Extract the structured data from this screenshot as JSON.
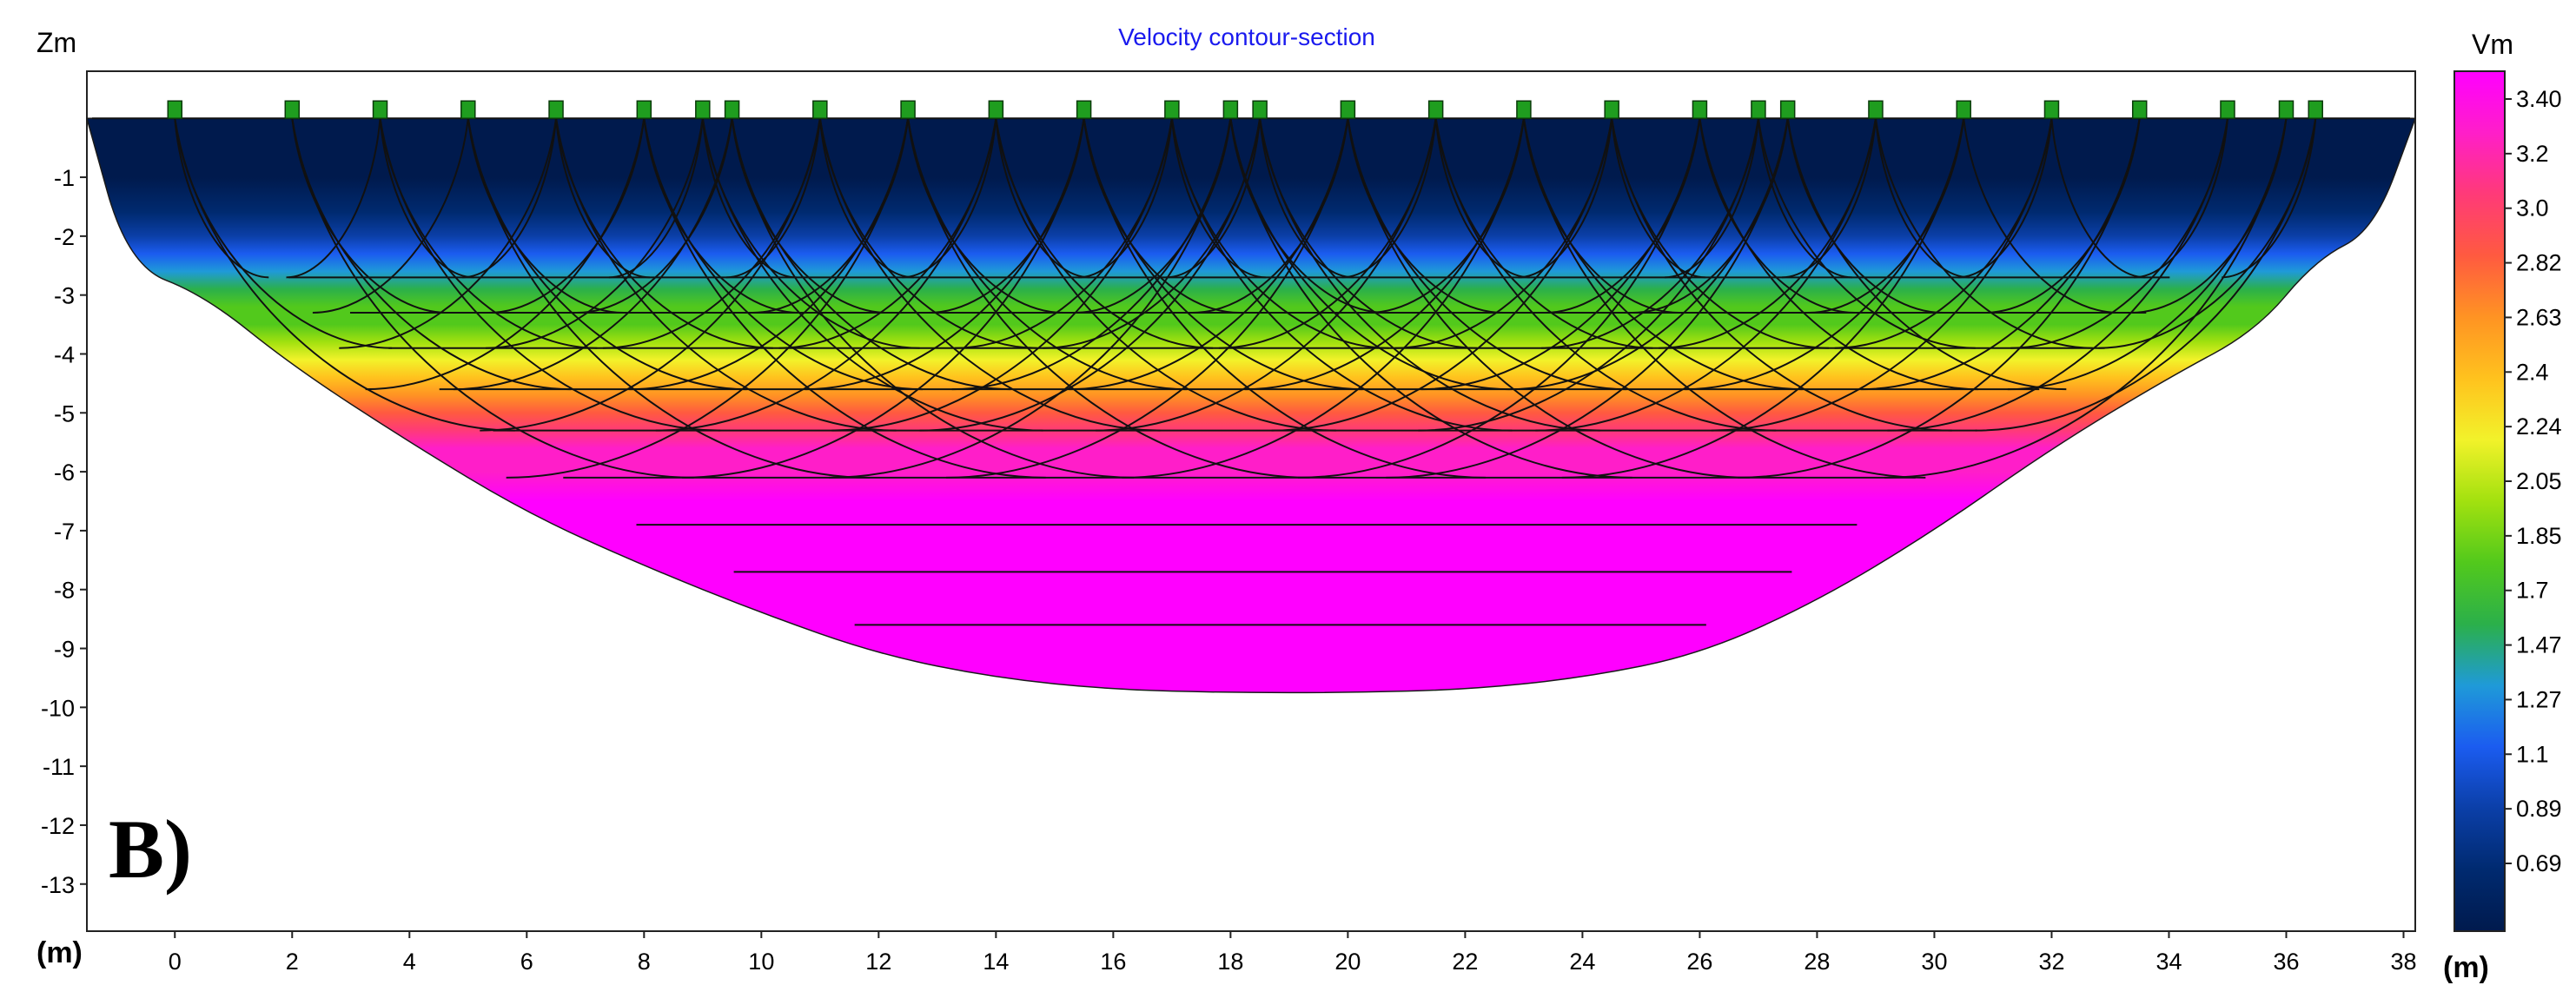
{
  "chart_data": {
    "type": "heatmap",
    "title": "Velocity contour-section",
    "panel_label": "B)",
    "ylabel": "Zm",
    "xunit": "(m)",
    "xunit_right": "(m)",
    "colorbar_label": "Vm",
    "xlim": [
      -1.5,
      38.2
    ],
    "ylim": [
      -13.8,
      0.8
    ],
    "x_ticks": [
      "0",
      "2",
      "4",
      "6",
      "8",
      "10",
      "12",
      "14",
      "16",
      "18",
      "20",
      "22",
      "24",
      "26",
      "28",
      "30",
      "32",
      "34",
      "36",
      "38"
    ],
    "y_ticks": [
      "-1",
      "-2",
      "-3",
      "-4",
      "-5",
      "-6",
      "-7",
      "-8",
      "-9",
      "-10",
      "-11",
      "-12",
      "-13"
    ],
    "colorbar_ticks": [
      "3.40",
      "3.2",
      "3.0",
      "2.82",
      "2.63",
      "2.4",
      "2.24",
      "2.05",
      "1.85",
      "1.7",
      "1.47",
      "1.27",
      "1.1",
      "0.89",
      "0.69"
    ],
    "colorbar_range": [
      0.5,
      3.5
    ],
    "colors": [
      "#001a4d",
      "#002a70",
      "#0b3fa8",
      "#1b5cf0",
      "#1f9ad8",
      "#2bb04a",
      "#52c91c",
      "#a2e10f",
      "#f2f22a",
      "#ffc21e",
      "#ff9323",
      "#ff5a40",
      "#ff3a78",
      "#ff1ec9",
      "#ff00ff"
    ],
    "surface_level": 0,
    "model_boundary": {
      "x": [
        -1.5,
        -0.8,
        0.5,
        2,
        4,
        6,
        8,
        10,
        12,
        14,
        16,
        18,
        20,
        22,
        24,
        26,
        28,
        30,
        32,
        34,
        35.5,
        36.5,
        37.5,
        38.2
      ],
      "z": [
        0,
        -2.5,
        -3.0,
        -4.2,
        -5.5,
        -6.7,
        -7.6,
        -8.4,
        -9.1,
        -9.5,
        -9.7,
        -9.75,
        -9.75,
        -9.7,
        -9.5,
        -9.1,
        -8.2,
        -7.0,
        -5.6,
        -4.4,
        -3.6,
        -2.4,
        -1.9,
        0
      ],
      "tri": [
        0.6,
        0.8,
        0.8,
        0.8,
        0.8,
        0.8,
        0.8,
        0.8,
        0.8,
        0.8,
        0.8,
        0.8,
        0.8,
        0.8,
        0.8,
        0.8,
        0.8,
        0.8,
        0.8,
        0.8,
        0.8,
        0.8,
        0.8,
        0.6
      ]
    },
    "velocity_profile": {
      "depth": [
        0,
        -1.0,
        -1.6,
        -2.0,
        -2.3,
        -2.6,
        -2.9,
        -3.2,
        -3.5,
        -3.8,
        -4.1,
        -4.4,
        -4.7,
        -5.0,
        -5.3,
        -5.6,
        -6.0,
        -6.5,
        -7.0,
        -10.0
      ],
      "velocity": [
        0.55,
        0.6,
        0.69,
        0.89,
        1.1,
        1.27,
        1.47,
        1.7,
        1.85,
        2.05,
        2.24,
        2.4,
        2.63,
        2.82,
        3.0,
        3.2,
        3.3,
        3.4,
        3.45,
        3.5
      ]
    },
    "geophones_x": [
      0,
      2,
      3.5,
      5,
      6.5,
      8,
      9,
      9.5,
      11,
      12.5,
      14,
      15.5,
      17,
      18,
      18.5,
      20,
      21.5,
      23,
      24.5,
      26,
      27,
      27.5,
      29,
      30.5,
      32,
      33.5,
      35,
      36,
      36.5
    ],
    "refractor_depths": [
      -2.7,
      -3.3,
      -3.9,
      -4.6,
      -5.3,
      -6.1,
      -6.9,
      -7.7,
      -8.6
    ]
  }
}
